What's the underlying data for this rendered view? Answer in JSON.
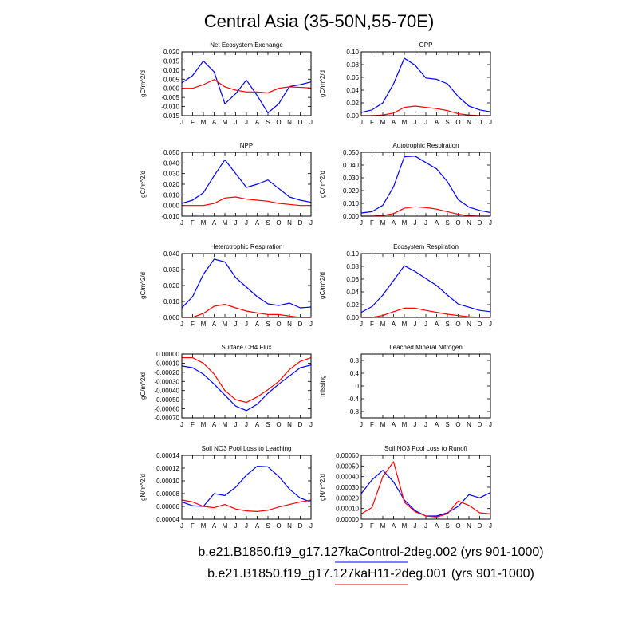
{
  "title": "Central Asia (35-50N,55-70E)",
  "months": [
    "J",
    "F",
    "M",
    "A",
    "M",
    "J",
    "J",
    "A",
    "S",
    "O",
    "N",
    "D",
    "J"
  ],
  "colors": {
    "control": "#0000ff",
    "h11": "#ff0000"
  },
  "legend": [
    {
      "label": "b.e21.B1850.f19_g17.127kaControl-2deg.002 (yrs 901-1000)",
      "color": "#0000ff"
    },
    {
      "label": "b.e21.B1850.f19_g17.127kaH11-2deg.001 (yrs 901-1000)",
      "color": "#ff0000"
    }
  ],
  "chart_data": [
    {
      "type": "line",
      "title": "Net Ecosystem Exchange",
      "ylabel": "gC/m^2/d",
      "ylim": [
        -0.015,
        0.02
      ],
      "yticks": [
        "0.020",
        "0.015",
        "0.010",
        "0.005",
        "0.000",
        "-0.005",
        "-0.010",
        "-0.015"
      ],
      "ytick_values": [
        0.02,
        0.015,
        0.01,
        0.005,
        0.0,
        -0.005,
        -0.01,
        -0.015
      ],
      "series": [
        {
          "color": "#0000ff",
          "values": [
            0.003,
            0.007,
            0.015,
            0.009,
            -0.0085,
            -0.003,
            0.0045,
            -0.004,
            -0.0135,
            -0.0085,
            0.001,
            0.002,
            0.0035
          ]
        },
        {
          "color": "#ff0000",
          "values": [
            0.0,
            0.0,
            0.002,
            0.0048,
            0.0008,
            -0.001,
            -0.002,
            -0.002,
            -0.0025,
            0.0,
            0.0008,
            0.0005,
            0.0002
          ]
        }
      ]
    },
    {
      "type": "line",
      "title": "GPP",
      "ylabel": "gC/m^2/d",
      "ylim": [
        0.0,
        0.1
      ],
      "yticks": [
        "0.10",
        "0.08",
        "0.06",
        "0.04",
        "0.02",
        "0.00"
      ],
      "ytick_values": [
        0.1,
        0.08,
        0.06,
        0.04,
        0.02,
        0.0
      ],
      "series": [
        {
          "color": "#0000ff",
          "values": [
            0.005,
            0.009,
            0.02,
            0.05,
            0.09,
            0.079,
            0.059,
            0.057,
            0.05,
            0.03,
            0.015,
            0.009,
            0.006
          ]
        },
        {
          "color": "#ff0000",
          "values": [
            0.0,
            0.0,
            0.001,
            0.004,
            0.013,
            0.015,
            0.013,
            0.011,
            0.008,
            0.003,
            0.001,
            0.0,
            0.0
          ]
        }
      ]
    },
    {
      "type": "line",
      "title": "NPP",
      "ylabel": "gC/m^2/d",
      "ylim": [
        -0.01,
        0.05
      ],
      "yticks": [
        "0.050",
        "0.040",
        "0.030",
        "0.020",
        "0.010",
        "0.000",
        "-0.010"
      ],
      "ytick_values": [
        0.05,
        0.04,
        0.03,
        0.02,
        0.01,
        0.0,
        -0.01
      ],
      "series": [
        {
          "color": "#0000ff",
          "values": [
            0.002,
            0.005,
            0.012,
            0.028,
            0.043,
            0.03,
            0.017,
            0.02,
            0.024,
            0.016,
            0.008,
            0.005,
            0.003
          ]
        },
        {
          "color": "#ff0000",
          "values": [
            0.0,
            0.0,
            0.0,
            0.002,
            0.007,
            0.008,
            0.006,
            0.005,
            0.004,
            0.002,
            0.001,
            0.0,
            0.0
          ]
        }
      ]
    },
    {
      "type": "line",
      "title": "Autotrophic Respiration",
      "ylabel": "gC/m^2/d",
      "ylim": [
        0.0,
        0.05
      ],
      "yticks": [
        "0.050",
        "0.040",
        "0.030",
        "0.020",
        "0.010",
        "0.000"
      ],
      "ytick_values": [
        0.05,
        0.04,
        0.03,
        0.02,
        0.01,
        0.0
      ],
      "series": [
        {
          "color": "#0000ff",
          "values": [
            0.0025,
            0.0035,
            0.0085,
            0.023,
            0.0465,
            0.047,
            0.042,
            0.037,
            0.027,
            0.013,
            0.007,
            0.0045,
            0.0028
          ]
        },
        {
          "color": "#ff0000",
          "values": [
            0.0,
            0.0,
            0.0005,
            0.002,
            0.0062,
            0.0073,
            0.0067,
            0.0055,
            0.0035,
            0.0015,
            0.0003,
            0.0,
            0.0
          ]
        }
      ]
    },
    {
      "type": "line",
      "title": "Heterotrophic Respiration",
      "ylabel": "gC/m^2/d",
      "ylim": [
        0.0,
        0.04
      ],
      "yticks": [
        "0.040",
        "0.030",
        "0.020",
        "0.010",
        "0.000"
      ],
      "ytick_values": [
        0.04,
        0.03,
        0.02,
        0.01,
        0.0
      ],
      "series": [
        {
          "color": "#0000ff",
          "values": [
            0.006,
            0.013,
            0.027,
            0.0365,
            0.0348,
            0.025,
            0.019,
            0.013,
            0.0085,
            0.0075,
            0.009,
            0.006,
            0.0065
          ]
        },
        {
          "color": "#ff0000",
          "values": [
            0.0,
            0.0,
            0.0025,
            0.007,
            0.0082,
            0.006,
            0.004,
            0.0028,
            0.0018,
            0.0018,
            0.0008,
            0.0,
            0.0
          ]
        }
      ]
    },
    {
      "type": "line",
      "title": "Ecosystem Respiration",
      "ylabel": "gC/m^2/d",
      "ylim": [
        0.0,
        0.1
      ],
      "yticks": [
        "0.10",
        "0.08",
        "0.06",
        "0.04",
        "0.02",
        "0.00"
      ],
      "ytick_values": [
        0.1,
        0.08,
        0.06,
        0.04,
        0.02,
        0.0
      ],
      "series": [
        {
          "color": "#0000ff",
          "values": [
            0.008,
            0.017,
            0.035,
            0.058,
            0.081,
            0.072,
            0.061,
            0.05,
            0.035,
            0.021,
            0.016,
            0.011,
            0.009
          ]
        },
        {
          "color": "#ff0000",
          "values": [
            0.0,
            0.0,
            0.003,
            0.009,
            0.0145,
            0.0145,
            0.011,
            0.008,
            0.005,
            0.003,
            0.001,
            0.0,
            0.0
          ]
        }
      ]
    },
    {
      "type": "line",
      "title": "Surface CH4 Flux",
      "ylabel": "gC/m^2/d",
      "ylim": [
        -0.0007,
        0.0
      ],
      "yticks": [
        "0.00000",
        "-0.00010",
        "-0.00020",
        "-0.00030",
        "-0.00040",
        "-0.00050",
        "-0.00060",
        "-0.00070"
      ],
      "ytick_values": [
        0.0,
        -0.0001,
        -0.0002,
        -0.0003,
        -0.0004,
        -0.0005,
        -0.0006,
        -0.0007
      ],
      "series": [
        {
          "color": "#0000ff",
          "values": [
            -0.00013,
            -0.00015,
            -0.00022,
            -0.00033,
            -0.00045,
            -0.00057,
            -0.00062,
            -0.00055,
            -0.00043,
            -0.00033,
            -0.00024,
            -0.00015,
            -0.00012
          ]
        },
        {
          "color": "#ff0000",
          "values": [
            -4e-05,
            -4e-05,
            -0.0001,
            -0.00022,
            -0.0004,
            -0.0005,
            -0.00053,
            -0.00047,
            -0.00039,
            -0.0003,
            -0.00017,
            -8e-05,
            -4e-05
          ]
        }
      ]
    },
    {
      "type": "line",
      "title": "Leached Mineral Nitrogen",
      "ylabel": "missing",
      "ylim": [
        -1.0,
        1.0
      ],
      "yticks": [
        "0.8",
        "0.4",
        "0",
        "-0.4",
        "-0.8"
      ],
      "ytick_values": [
        0.8,
        0.4,
        0.0,
        -0.4,
        -0.8
      ],
      "series": []
    },
    {
      "type": "line",
      "title": "Soil NO3 Pool Loss to Leaching",
      "ylabel": "gN/m^2/d",
      "ylim": [
        4e-05,
        0.00014
      ],
      "yticks": [
        "0.00014",
        "0.00012",
        "0.00010",
        "0.00008",
        "0.00006",
        "0.00004"
      ],
      "ytick_values": [
        0.00014,
        0.00012,
        0.0001,
        8e-05,
        6e-05,
        4e-05
      ],
      "series": [
        {
          "color": "#0000ff",
          "values": [
            6.7e-05,
            6.1e-05,
            6e-05,
            8e-05,
            7.7e-05,
            9e-05,
            0.000109,
            0.000123,
            0.000122,
            0.000107,
            8.7e-05,
            7.3e-05,
            6.7e-05
          ]
        },
        {
          "color": "#ff0000",
          "values": [
            7e-05,
            6.7e-05,
            6e-05,
            5.8e-05,
            6.3e-05,
            5.6e-05,
            5.3e-05,
            5.2e-05,
            5.4e-05,
            5.9e-05,
            6.3e-05,
            6.7e-05,
            7e-05
          ]
        }
      ]
    },
    {
      "type": "line",
      "title": "Soil NO3 Pool Loss to Runoff",
      "ylabel": "gN/m^2/d",
      "ylim": [
        0.0,
        0.0006
      ],
      "yticks": [
        "0.00060",
        "0.00050",
        "0.00040",
        "0.00030",
        "0.00020",
        "0.00010",
        "0.00000"
      ],
      "ytick_values": [
        0.0006,
        0.0005,
        0.0004,
        0.0003,
        0.0002,
        0.0001,
        0.0
      ],
      "series": [
        {
          "color": "#0000ff",
          "values": [
            0.00024,
            0.00037,
            0.00046,
            0.00035,
            0.00018,
            8e-05,
            3e-05,
            3e-05,
            6e-05,
            0.00012,
            0.00023,
            0.0002,
            0.00025
          ]
        },
        {
          "color": "#ff0000",
          "values": [
            5e-05,
            0.00011,
            0.0004,
            0.00054,
            0.00016,
            7e-05,
            3e-05,
            2e-05,
            5e-05,
            0.00017,
            0.00013,
            6e-05,
            5e-05
          ]
        }
      ]
    }
  ]
}
